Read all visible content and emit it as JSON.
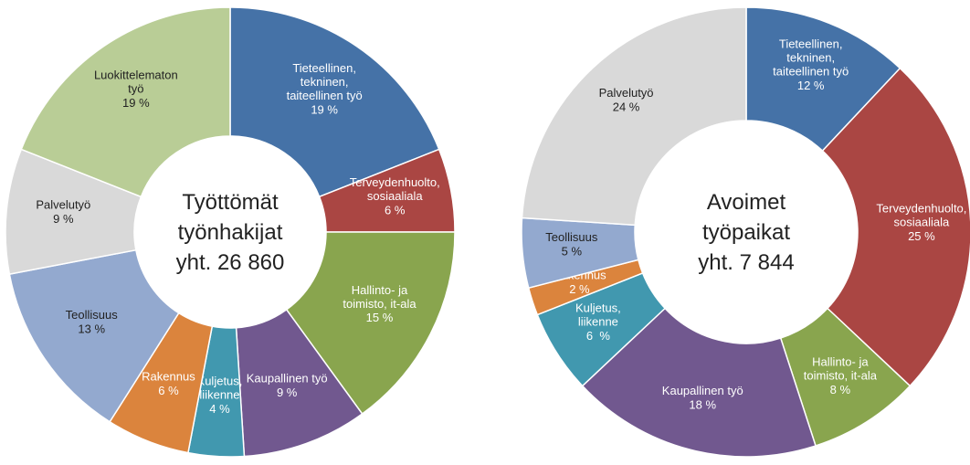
{
  "chart_data": [
    {
      "type": "pie",
      "title": "Työttömät\ntyönhakijat\nyht. 26 860",
      "categories": [
        "Tieteellinen,\ntekninen,\ntaiteellinen työ",
        "Terveydenhuolto,\nsosiaaliala",
        "Hallinto- ja\ntoimisto, it-ala",
        "Kaupallinen työ",
        "Kuljetus,\nliikenne",
        "Rakennus",
        "Teollisuus",
        "Palvelutyö",
        "Luokittelematon\ntyö"
      ],
      "values": [
        19,
        6,
        15,
        9,
        4,
        6,
        13,
        9,
        19
      ],
      "value_labels": [
        "19 %",
        "6 %",
        "15 %",
        "9 %",
        "4 %",
        "6 %",
        "13 %",
        "9 %",
        "19 %"
      ],
      "colors": [
        "#4572a7",
        "#aa4643",
        "#89a54e",
        "#71588f",
        "#4198af",
        "#db843d",
        "#93a9cf",
        "#d9d9d9",
        "#b9cd96"
      ]
    },
    {
      "type": "pie",
      "title": "Avoimet\ntyöpaikat\nyht. 7 844",
      "categories": [
        "Tieteellinen,\ntekninen,\ntaiteellinen työ",
        "Terveydenhuolto,\nsosiaaliala",
        "Hallinto- ja\ntoimisto, it-ala",
        "Kaupallinen työ",
        "Kuljetus,\nliikenne",
        "Rakennus",
        "Teollisuus",
        "Palvelutyö"
      ],
      "values": [
        12,
        25,
        8,
        18,
        6,
        2,
        5,
        24
      ],
      "value_labels": [
        "12 %",
        "25 %",
        "8 %",
        "18 %",
        "6  %",
        "2 %",
        "5 %",
        "24 %"
      ],
      "colors": [
        "#4572a7",
        "#aa4643",
        "#89a54e",
        "#71588f",
        "#4198af",
        "#db843d",
        "#93a9cf",
        "#d9d9d9"
      ]
    }
  ]
}
